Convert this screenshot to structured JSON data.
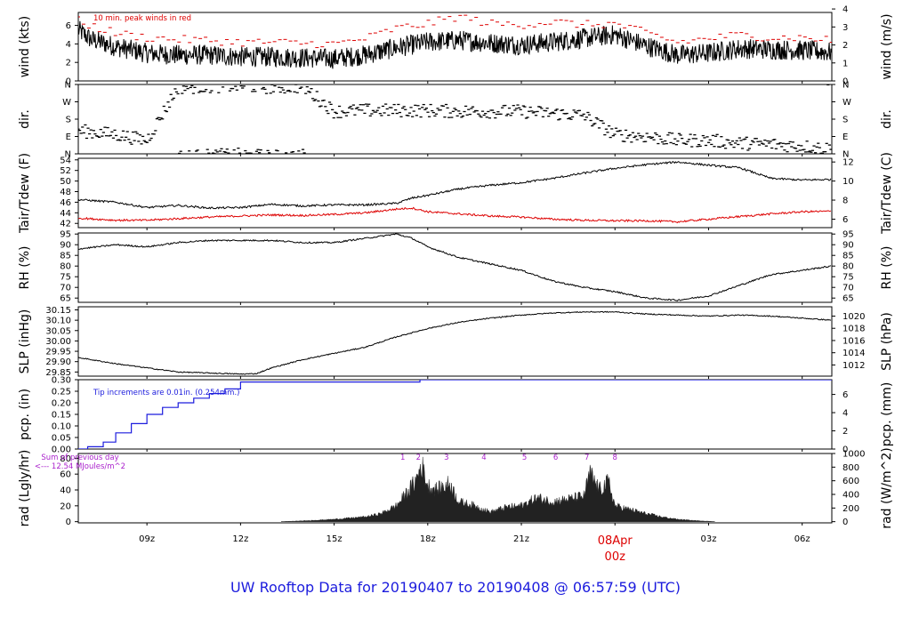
{
  "title": "UW Rooftop Data for 20190407  to  20190408 @ 06:57:59  (UTC)",
  "title_color": "#1c1cdd",
  "time_axis": {
    "start_hour": 6.8,
    "end_hour": 30.95,
    "ticks": [
      {
        "h": 9,
        "label": "09z"
      },
      {
        "h": 12,
        "label": "12z"
      },
      {
        "h": 15,
        "label": "15z"
      },
      {
        "h": 18,
        "label": "18z"
      },
      {
        "h": 21,
        "label": "21z"
      },
      {
        "h": 24,
        "label": "00z"
      },
      {
        "h": 27,
        "label": "03z"
      },
      {
        "h": 30,
        "label": "06z"
      }
    ],
    "day_marker": {
      "h": 24,
      "date": "08Apr",
      "label": "00z",
      "color": "#dd0000"
    }
  },
  "chart_data": [
    {
      "type": "line",
      "id": "wind",
      "ylabel": "wind (kts)",
      "ylabel_right": "wind (m/s)",
      "ylim": [
        0,
        7.4
      ],
      "ticks": [
        0,
        2,
        4,
        6
      ],
      "right_ticks": [
        {
          "label": "0",
          "v": 0
        },
        {
          "label": "1",
          "v": 1.944
        },
        {
          "label": "2",
          "v": 3.888
        },
        {
          "label": "3",
          "v": 5.832
        },
        {
          "label": "4",
          "v": 7.776
        }
      ],
      "annotation": "10 min. peak winds in red",
      "annotation_color": "#dd0000",
      "series": [
        {
          "role": "wind",
          "color": "#000000",
          "x": [
            6.8,
            7.2,
            8,
            9,
            10,
            11,
            12,
            13,
            14,
            15,
            16,
            17,
            18,
            19,
            20,
            21,
            22,
            23,
            24,
            25,
            26,
            27,
            28,
            29,
            30,
            30.95
          ],
          "y": [
            5.5,
            4.5,
            3.7,
            3.0,
            2.8,
            2.8,
            2.6,
            2.6,
            2.5,
            2.4,
            2.8,
            3.6,
            4.2,
            4.4,
            4.1,
            3.9,
            4.2,
            4.6,
            5.0,
            3.8,
            2.8,
            3.0,
            3.5,
            3.4,
            3.3,
            3.1
          ]
        },
        {
          "role": "peak",
          "color": "#dd0000",
          "x": [
            6.8,
            7.2,
            8,
            9,
            10,
            11,
            12,
            13,
            14,
            15,
            16,
            17,
            18,
            19,
            20,
            21,
            22,
            23,
            24,
            25,
            26,
            27,
            28,
            29,
            30,
            30.95
          ],
          "y": [
            6.3,
            5.8,
            5.0,
            4.5,
            4.3,
            4.2,
            4.0,
            4.0,
            3.9,
            3.8,
            4.4,
            5.5,
            6.0,
            6.8,
            6.0,
            5.9,
            6.2,
            5.9,
            6.0,
            5.0,
            4.0,
            4.4,
            4.8,
            4.5,
            4.5,
            4.2
          ]
        }
      ]
    },
    {
      "type": "scatter",
      "id": "dir",
      "ylabel": "dir.",
      "ylabel_right": "dir.",
      "ylim": [
        0,
        360
      ],
      "ticks": [
        {
          "label": "N",
          "v": 0
        },
        {
          "label": "E",
          "v": 90
        },
        {
          "label": "S",
          "v": 180
        },
        {
          "label": "W",
          "v": 270
        },
        {
          "label": "N",
          "v": 360
        }
      ],
      "series": [
        {
          "role": "direction",
          "color": "#000000",
          "x": [
            6.8,
            8,
            9,
            10,
            11,
            12,
            13,
            14,
            15,
            16,
            17,
            18,
            19,
            20,
            21,
            22,
            23,
            24,
            25,
            26,
            27,
            28,
            29,
            30,
            30.95
          ],
          "y": [
            120,
            100,
            70,
            345,
            350,
            355,
            345,
            350,
            220,
            225,
            225,
            225,
            220,
            220,
            220,
            210,
            200,
            100,
            90,
            70,
            70,
            55,
            50,
            40,
            25
          ]
        }
      ]
    },
    {
      "type": "line",
      "id": "temp",
      "ylabel": "Tair/Tdew (F)",
      "ylabel_right": "Tair/Tdew (C)",
      "ylim": [
        41.2,
        54.3
      ],
      "ticks": [
        42,
        44,
        46,
        48,
        50,
        52,
        54
      ],
      "right_ticks": [
        {
          "label": "6",
          "v": 42.8
        },
        {
          "label": "8",
          "v": 46.4
        },
        {
          "label": "10",
          "v": 50.0
        },
        {
          "label": "12",
          "v": 53.6
        }
      ],
      "series": [
        {
          "role": "air",
          "color": "#000000",
          "x": [
            6.8,
            8,
            9,
            10,
            11,
            12,
            13,
            14,
            15,
            16,
            17,
            17.5,
            18,
            19,
            20,
            21,
            22,
            23,
            24,
            25,
            26,
            27,
            28,
            29,
            30,
            30.95
          ],
          "y": [
            46.5,
            46.0,
            45.0,
            45.4,
            44.9,
            45.0,
            45.6,
            45.3,
            45.5,
            45.5,
            45.8,
            46.8,
            47.3,
            48.5,
            49.2,
            49.7,
            50.5,
            51.5,
            52.4,
            53.1,
            53.6,
            53.0,
            52.5,
            50.5,
            50.2,
            50.3
          ]
        },
        {
          "role": "dew",
          "color": "#dd0000",
          "x": [
            6.8,
            8,
            9,
            10,
            11,
            12,
            13,
            14,
            15,
            16,
            17,
            17.5,
            18,
            19,
            20,
            21,
            22,
            23,
            24,
            25,
            26,
            27,
            28,
            29,
            30,
            30.95
          ],
          "y": [
            43.0,
            42.6,
            42.6,
            42.9,
            43.2,
            43.4,
            43.6,
            43.5,
            43.7,
            44.0,
            44.7,
            44.9,
            44.2,
            43.8,
            43.4,
            43.2,
            42.8,
            42.6,
            42.5,
            42.5,
            42.3,
            42.8,
            43.3,
            43.8,
            44.2,
            44.3
          ]
        }
      ]
    },
    {
      "type": "line",
      "id": "rh",
      "ylabel": "RH (%)",
      "ylabel_right": "RH (%)",
      "ylim": [
        63,
        95.5
      ],
      "ticks": [
        65,
        70,
        75,
        80,
        85,
        90,
        95
      ],
      "right_ticks": [
        {
          "label": "65",
          "v": 65
        },
        {
          "label": "70",
          "v": 70
        },
        {
          "label": "75",
          "v": 75
        },
        {
          "label": "80",
          "v": 80
        },
        {
          "label": "85",
          "v": 85
        },
        {
          "label": "90",
          "v": 90
        },
        {
          "label": "95",
          "v": 95
        }
      ],
      "series": [
        {
          "role": "rh",
          "color": "#000000",
          "x": [
            6.8,
            8,
            9,
            10,
            11,
            12,
            13,
            14,
            15,
            16,
            17,
            17.5,
            18,
            19,
            20,
            21,
            22,
            23,
            24,
            25,
            26,
            27,
            28,
            29,
            30,
            30.95
          ],
          "y": [
            88,
            90,
            89,
            91,
            92,
            92,
            92,
            91,
            91,
            93,
            95,
            93,
            89,
            84,
            81,
            78,
            73,
            70,
            68,
            65,
            64,
            66,
            71,
            76,
            78,
            80
          ]
        }
      ]
    },
    {
      "type": "line",
      "id": "slp",
      "ylabel": "SLP (inHg)",
      "ylabel_right": "SLP (hPa)",
      "ylim": [
        29.83,
        30.165
      ],
      "ticks": [
        29.85,
        29.9,
        29.95,
        30.0,
        30.05,
        30.1,
        30.15
      ],
      "tick_labels": [
        "29.85",
        "29.90",
        "29.95",
        "30.00",
        "30.05",
        "30.10",
        "30.15"
      ],
      "right_ticks": [
        {
          "label": "1012",
          "v": 29.884
        },
        {
          "label": "1014",
          "v": 29.943
        },
        {
          "label": "1016",
          "v": 30.002
        },
        {
          "label": "1018",
          "v": 30.061
        },
        {
          "label": "1020",
          "v": 30.12
        }
      ],
      "series": [
        {
          "role": "slp",
          "color": "#000000",
          "x": [
            6.8,
            8,
            9,
            10,
            11,
            12,
            12.5,
            13,
            14,
            15,
            16,
            17,
            18,
            19,
            20,
            21,
            22,
            23,
            24,
            25,
            26,
            27,
            28,
            29,
            30,
            30.95
          ],
          "y": [
            29.92,
            29.89,
            29.87,
            29.85,
            29.845,
            29.84,
            29.842,
            29.87,
            29.91,
            29.94,
            29.97,
            30.02,
            30.06,
            30.09,
            30.11,
            30.125,
            30.135,
            30.14,
            30.14,
            30.13,
            30.125,
            30.12,
            30.125,
            30.12,
            30.11,
            30.1
          ]
        }
      ]
    },
    {
      "type": "line",
      "id": "pcp",
      "ylabel": "pcp. (in)",
      "ylabel_right": "pcp. (mm)",
      "ylim": [
        0,
        0.3
      ],
      "ticks": [
        0,
        0.05,
        0.1,
        0.15,
        0.2,
        0.25,
        0.3
      ],
      "tick_labels": [
        "0.00",
        "0.05",
        "0.10",
        "0.15",
        "0.20",
        "0.25",
        "0.30"
      ],
      "right_ticks": [
        {
          "label": "0",
          "v": 0
        },
        {
          "label": "2",
          "v": 0.0787
        },
        {
          "label": "4",
          "v": 0.1575
        },
        {
          "label": "6",
          "v": 0.2362
        }
      ],
      "annotation": "Tip increments are 0.01in. (0.254mm.)",
      "annotation_color": "#1c1cdd",
      "series": [
        {
          "role": "pcp",
          "color": "#1c1cdd",
          "x": [
            6.8,
            7.1,
            7.6,
            8.0,
            8.5,
            9.0,
            9.5,
            10.0,
            10.5,
            11.0,
            11.5,
            12.0,
            17.7,
            17.75,
            30.95
          ],
          "y": [
            0,
            0.01,
            0.03,
            0.07,
            0.11,
            0.15,
            0.18,
            0.2,
            0.22,
            0.24,
            0.26,
            0.29,
            0.29,
            0.3,
            0.3
          ]
        }
      ]
    },
    {
      "type": "area",
      "id": "rad",
      "ylabel": "rad (Lgly/hr)",
      "ylabel_right": "rad (W/m^2)",
      "ylim": [
        -1.5,
        86
      ],
      "ticks": [
        0,
        20,
        40,
        60,
        80
      ],
      "right_ticks": [
        {
          "label": "0",
          "v": 0
        },
        {
          "label": "200",
          "v": 17.2
        },
        {
          "label": "400",
          "v": 34.4
        },
        {
          "label": "600",
          "v": 51.6
        },
        {
          "label": "800",
          "v": 68.8
        },
        {
          "label": "1000",
          "v": 86.0
        }
      ],
      "annotation": [
        "Sum of previous day",
        "<--- 12.54 MJoules/m^2"
      ],
      "annotation_color": "#aa22cc",
      "markers": [
        {
          "label": "1",
          "h": 17.2
        },
        {
          "label": "2",
          "h": 17.7
        },
        {
          "label": "3",
          "h": 18.6
        },
        {
          "label": "4",
          "h": 19.8
        },
        {
          "label": "5",
          "h": 21.1
        },
        {
          "label": "6",
          "h": 22.1
        },
        {
          "label": "7",
          "h": 23.1
        },
        {
          "label": "8",
          "h": 24.0
        }
      ],
      "series": [
        {
          "role": "rad",
          "color": "#222222",
          "x": [
            13.3,
            14,
            15,
            16,
            16.5,
            17,
            17.3,
            17.6,
            17.8,
            18,
            18.3,
            18.7,
            19,
            19.5,
            20,
            20.5,
            21,
            21.5,
            22,
            22.5,
            23,
            23.2,
            23.5,
            23.8,
            24,
            24.5,
            25,
            25.5,
            26,
            26.5,
            27,
            27.2
          ],
          "y": [
            0,
            1,
            3,
            6,
            10,
            20,
            35,
            50,
            72,
            45,
            40,
            48,
            25,
            20,
            12,
            18,
            20,
            30,
            25,
            28,
            32,
            60,
            40,
            50,
            20,
            15,
            10,
            6,
            3,
            1.5,
            0.5,
            0
          ]
        }
      ]
    }
  ]
}
